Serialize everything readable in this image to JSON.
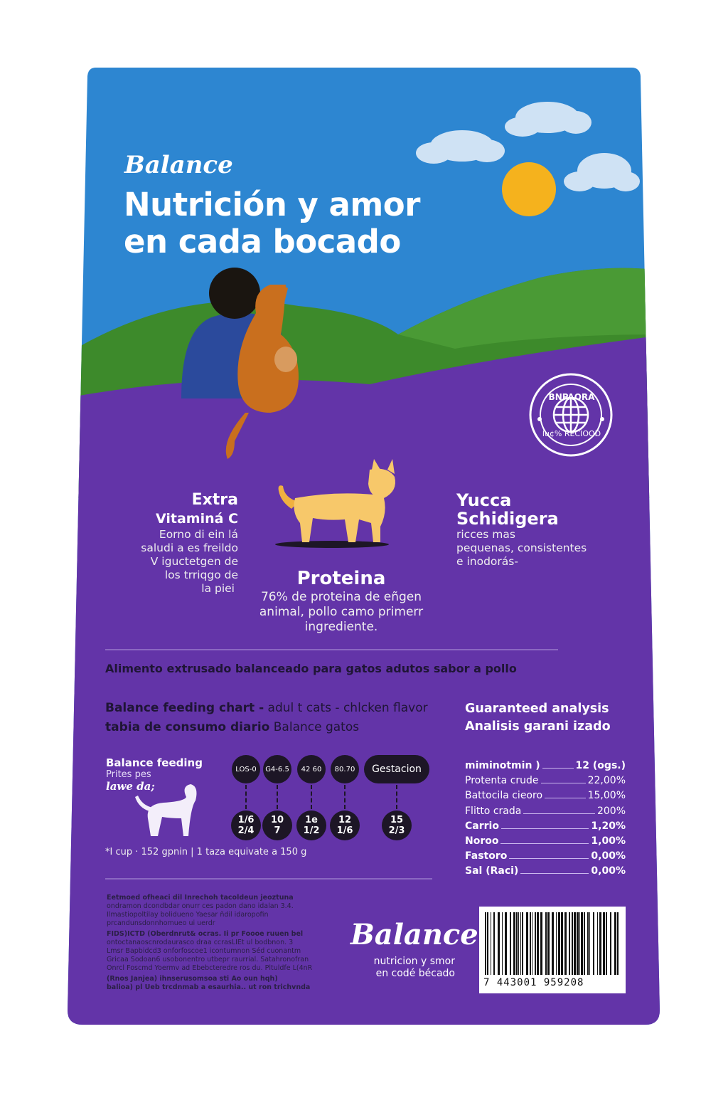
{
  "colors": {
    "sky": "#2d86d1",
    "hills": "#3d8a2b",
    "bag": "#6334a8",
    "sun": "#f5b21d",
    "badge": "#1d1626"
  },
  "header": {
    "brand": "Balance",
    "headline_line1": "Nutrición y amor",
    "headline_line2": "en cada bocado"
  },
  "seal": {
    "top_text": "BNPAORA",
    "bottom_text": "lu¢% RECIOOD",
    "icon": "globe-icon"
  },
  "features": {
    "left": {
      "title_line1": "Extra",
      "title_line2": "Vitaminá C",
      "text": [
        "Eorno di ein lá",
        "saludi a es freildo",
        "V iguctetgen de",
        "los trriqgo de",
        "la piei"
      ]
    },
    "center": {
      "title": "Proteina",
      "text": [
        "76% de proteina de eñgen",
        "animal, pollo camo primerr",
        "ingrediente."
      ]
    },
    "right": {
      "title_line1": "Yucca",
      "title_line2": "Schidigera",
      "text": [
        "ricces mas",
        "pequenas, consistentes",
        "e inodorás-"
      ]
    }
  },
  "product_description": "Alimento extrusado balanceado para gatos adutos sabor a pollo",
  "feeding": {
    "title_bold": "Balance feeding chart -",
    "title_rest": " adul t cats - chlcken flavor",
    "subtitle_bold": "tabia de consumo diario",
    "subtitle_rest": " Balance gatos",
    "label_title": "Balance feeding",
    "label_sub": "Prites pes",
    "label_script": "lawe da;",
    "weights": [
      "LOS-0",
      "G4-6.5",
      "42 60",
      "80.70",
      "Gestacion"
    ],
    "amounts": [
      [
        "1/6",
        "2/4"
      ],
      [
        "10",
        "7"
      ],
      [
        "1e",
        "1/2"
      ],
      [
        "12",
        "1/6"
      ],
      [
        "15",
        "2/3"
      ]
    ],
    "note": "*I cup ·  152 gpnin | 1 taza equivate a 150 g"
  },
  "analysis": {
    "title1": "Guaranteed analysis",
    "title2": "Analisis garani izado",
    "rows": [
      {
        "label": "miminotmin )",
        "value": "12 (ogs.)",
        "bold": true
      },
      {
        "label": "Protenta crude",
        "value": "22,00%",
        "bold": false
      },
      {
        "label": "Battocila cieoro",
        "value": "15,00%",
        "bold": false
      },
      {
        "label": "Flitto crada",
        "value": "200%",
        "bold": false
      },
      {
        "label": "Carrio",
        "value": "1,20%",
        "bold": true
      },
      {
        "label": "Noroo",
        "value": "1,00%",
        "bold": true
      },
      {
        "label": "Fastoro",
        "value": "0,00%",
        "bold": true
      },
      {
        "label": "Sal  (Raci)",
        "value": "0,00%",
        "bold": true
      }
    ]
  },
  "fine_print": [
    "Eetmoed ofheaci dil Inrechoh tacoldeun jeoztuna",
    "ondramon dcondbdar onurr ces padon dano idalan 3.4.",
    "Ilmastiopoltilay bolidueno Yaesar ñdil idaropofin",
    "prcandunsdonnhomueo ui uerdr",
    "FIDS)ICTD (Oberdnrut& ocras.  Ii pr Foooe ruuen bel",
    "ontoctanaoscnrodaurasco draa ccrasLIEt ul bodbnon. 3",
    "Lmsr Bapbidcd3 onforfoscoe1 icontumnon Séd cuonantm",
    "Gricaa Sodoan6 usobonentro utbepr raurrial. Satahronofran",
    "Onrcl Foscmd Yoermv ad Ebebcteredre ros du. Pltuldfe L(4nR",
    "(Rnos Janjea) ihnserusomsoa sti Ao oun hqh)",
    "balioa) pl Ueb trcdnmab a esaurhia.. ut ron trichvnda"
  ],
  "footer_brand": {
    "name": "Balance",
    "tagline1": "nutricion y smor",
    "tagline2": "en codé bécado"
  },
  "barcode": {
    "number": "7   443001   959208"
  }
}
